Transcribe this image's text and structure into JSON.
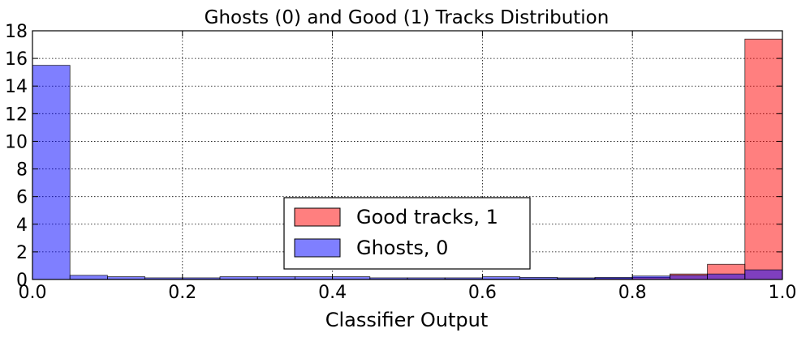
{
  "chart_data": {
    "type": "bar",
    "title": "Ghosts (0) and Good (1) Tracks Distribution",
    "xlabel": "Classifier Output",
    "ylabel": "",
    "xlim": [
      0.0,
      1.0
    ],
    "ylim": [
      0,
      18
    ],
    "grid": true,
    "legend_position": "lower-center",
    "xticks": [
      "0.0",
      "0.2",
      "0.4",
      "0.6",
      "0.8",
      "1.0"
    ],
    "yticks": [
      "0",
      "2",
      "4",
      "6",
      "8",
      "10",
      "12",
      "14",
      "16",
      "18"
    ],
    "bin_edges": [
      0.0,
      0.05,
      0.1,
      0.15,
      0.2,
      0.25,
      0.3,
      0.35,
      0.4,
      0.45,
      0.5,
      0.55,
      0.6,
      0.65,
      0.7,
      0.75,
      0.8,
      0.85,
      0.9,
      0.95,
      1.0
    ],
    "series": [
      {
        "name": "Good tracks, 1",
        "color": "#ff0000",
        "alpha": 0.5,
        "values": [
          0.0,
          0.02,
          0.02,
          0.02,
          0.02,
          0.02,
          0.02,
          0.02,
          0.02,
          0.02,
          0.02,
          0.03,
          0.03,
          0.04,
          0.05,
          0.08,
          0.15,
          0.4,
          1.1,
          17.4
        ]
      },
      {
        "name": "Ghosts, 0",
        "color": "#0000ff",
        "alpha": 0.5,
        "values": [
          15.5,
          0.3,
          0.2,
          0.12,
          0.12,
          0.2,
          0.2,
          0.2,
          0.2,
          0.12,
          0.12,
          0.12,
          0.2,
          0.15,
          0.12,
          0.15,
          0.25,
          0.3,
          0.4,
          0.7
        ]
      }
    ]
  }
}
